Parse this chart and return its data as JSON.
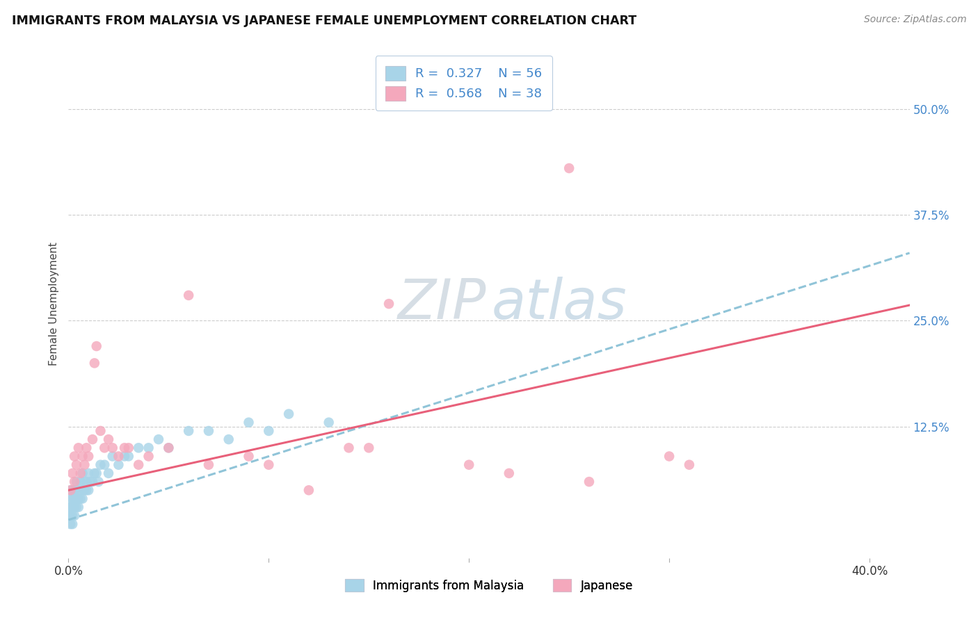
{
  "title": "IMMIGRANTS FROM MALAYSIA VS JAPANESE FEMALE UNEMPLOYMENT CORRELATION CHART",
  "source": "Source: ZipAtlas.com",
  "ylabel": "Female Unemployment",
  "x_range": [
    0.0,
    0.42
  ],
  "y_range": [
    -0.03,
    0.57
  ],
  "y_tick_values": [
    0.125,
    0.25,
    0.375,
    0.5
  ],
  "x_tick_values": [
    0.0,
    0.4
  ],
  "legend_r1": "0.327",
  "legend_n1": "56",
  "legend_r2": "0.568",
  "legend_n2": "38",
  "legend_label1": "Immigrants from Malaysia",
  "legend_label2": "Japanese",
  "color_blue": "#a8d4e8",
  "color_pink": "#f4a8bc",
  "color_pink_line": "#e8607a",
  "color_blue_line": "#90c4d8",
  "color_accent": "#4488cc",
  "watermark_color": "#c8d8e8",
  "background_color": "#ffffff",
  "grid_color": "#cccccc",
  "blue_slope": 0.75,
  "blue_intercept": 0.015,
  "pink_slope": 0.52,
  "pink_intercept": 0.05,
  "blue_x": [
    0.001,
    0.001,
    0.001,
    0.001,
    0.001,
    0.001,
    0.001,
    0.002,
    0.002,
    0.002,
    0.002,
    0.002,
    0.003,
    0.003,
    0.003,
    0.003,
    0.004,
    0.004,
    0.004,
    0.005,
    0.005,
    0.005,
    0.006,
    0.006,
    0.006,
    0.007,
    0.007,
    0.008,
    0.008,
    0.009,
    0.009,
    0.01,
    0.01,
    0.011,
    0.012,
    0.013,
    0.014,
    0.015,
    0.016,
    0.018,
    0.02,
    0.022,
    0.025,
    0.028,
    0.03,
    0.035,
    0.04,
    0.045,
    0.05,
    0.06,
    0.07,
    0.08,
    0.09,
    0.1,
    0.11,
    0.13
  ],
  "blue_y": [
    0.01,
    0.02,
    0.02,
    0.03,
    0.03,
    0.04,
    0.05,
    0.01,
    0.02,
    0.03,
    0.04,
    0.05,
    0.02,
    0.03,
    0.04,
    0.05,
    0.03,
    0.04,
    0.06,
    0.03,
    0.04,
    0.05,
    0.04,
    0.05,
    0.06,
    0.04,
    0.07,
    0.05,
    0.06,
    0.05,
    0.06,
    0.05,
    0.07,
    0.06,
    0.06,
    0.07,
    0.07,
    0.06,
    0.08,
    0.08,
    0.07,
    0.09,
    0.08,
    0.09,
    0.09,
    0.1,
    0.1,
    0.11,
    0.1,
    0.12,
    0.12,
    0.11,
    0.13,
    0.12,
    0.14,
    0.13
  ],
  "pink_x": [
    0.001,
    0.002,
    0.003,
    0.003,
    0.004,
    0.005,
    0.006,
    0.007,
    0.008,
    0.009,
    0.01,
    0.012,
    0.013,
    0.014,
    0.016,
    0.018,
    0.02,
    0.022,
    0.025,
    0.028,
    0.03,
    0.035,
    0.04,
    0.05,
    0.06,
    0.07,
    0.09,
    0.1,
    0.12,
    0.14,
    0.15,
    0.16,
    0.2,
    0.22,
    0.25,
    0.26,
    0.3,
    0.31
  ],
  "pink_y": [
    0.05,
    0.07,
    0.06,
    0.09,
    0.08,
    0.1,
    0.07,
    0.09,
    0.08,
    0.1,
    0.09,
    0.11,
    0.2,
    0.22,
    0.12,
    0.1,
    0.11,
    0.1,
    0.09,
    0.1,
    0.1,
    0.08,
    0.09,
    0.1,
    0.28,
    0.08,
    0.09,
    0.08,
    0.05,
    0.1,
    0.1,
    0.27,
    0.08,
    0.07,
    0.43,
    0.06,
    0.09,
    0.08
  ]
}
